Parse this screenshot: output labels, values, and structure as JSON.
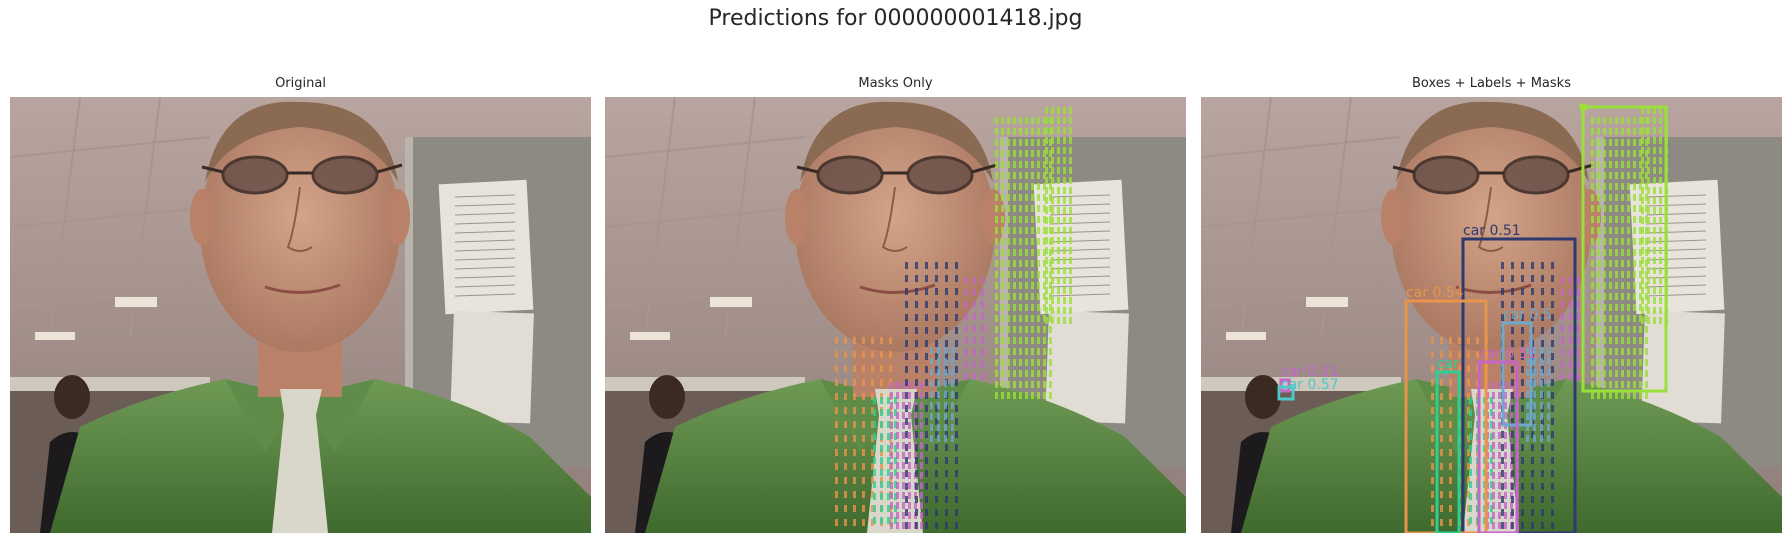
{
  "figure": {
    "title": "Predictions for 000000001418.jpg"
  },
  "panels": [
    {
      "title": "Original"
    },
    {
      "title": "Masks Only"
    },
    {
      "title": "Boxes + Labels + Masks"
    }
  ],
  "detections": [
    {
      "label": "car 0.51",
      "color": "#2e3a6e"
    },
    {
      "label": "car 0.54",
      "color": "#e8944a"
    },
    {
      "label": "car 0.5",
      "color": "#6fa8c8"
    },
    {
      "label": "car 0.51",
      "color": "#c466c8"
    },
    {
      "label": "car",
      "color": "#2ecf8f"
    },
    {
      "label": "car 0.51",
      "color": "#c466c8"
    },
    {
      "label": "car 0.57",
      "color": "#4ec9c9"
    },
    {
      "label": "",
      "color": "#9be03a"
    },
    {
      "label": "",
      "color": "#9be03a"
    }
  ]
}
